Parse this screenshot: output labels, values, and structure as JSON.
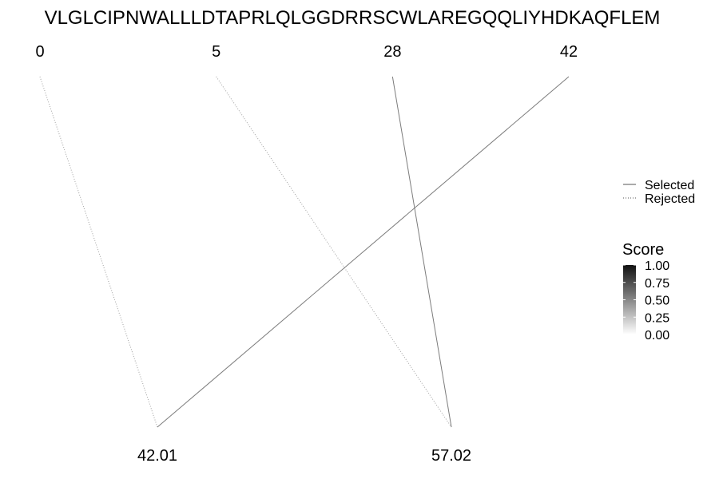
{
  "chart_data": {
    "type": "diagram",
    "sequence": "VLGLCIPNWALLLDTAPRLQLGGDRRSCWLAREGQQLIYHDKAQFLEM",
    "top_ticks": [
      0,
      5,
      28,
      42
    ],
    "bottom_ticks": [
      42.01,
      57.02
    ],
    "links": [
      {
        "from": 0,
        "to": 42.01,
        "status": "Rejected",
        "score": 0.4
      },
      {
        "from": 5,
        "to": 57.02,
        "status": "Rejected",
        "score": 0.4
      },
      {
        "from": 28,
        "to": 57.02,
        "status": "Selected",
        "score": 0.55
      },
      {
        "from": 42,
        "to": 42.01,
        "status": "Selected",
        "score": 0.55
      }
    ],
    "status_legend": {
      "entries": [
        "Selected",
        "Rejected"
      ],
      "placement": "right"
    },
    "score_legend": {
      "title": "Score",
      "tick_labels": [
        "1.00",
        "0.75",
        "0.50",
        "0.25",
        "0.00"
      ],
      "range": [
        0,
        1
      ]
    }
  }
}
